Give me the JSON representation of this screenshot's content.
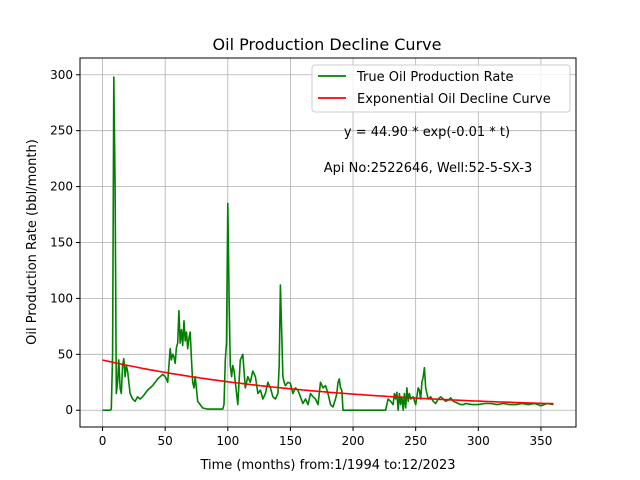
{
  "chart_data": {
    "type": "line",
    "title": "Oil Production Decline Curve",
    "xlabel": "Time (months) from:1/1994 to:12/2023",
    "ylabel": "Oil Production Rate (bbl/month)",
    "xlim": [
      -18,
      378
    ],
    "ylim": [
      -15,
      315
    ],
    "xticks": [
      0,
      50,
      100,
      150,
      200,
      250,
      300,
      350
    ],
    "yticks": [
      0,
      50,
      100,
      150,
      200,
      250,
      300
    ],
    "grid": true,
    "legend_position": "top-right",
    "series": [
      {
        "name": "True Oil Production Rate",
        "color": "#008000",
        "x": [
          0,
          3,
          6,
          7,
          8,
          9,
          10,
          11,
          12,
          13,
          14,
          15,
          16,
          17,
          18,
          19,
          20,
          22,
          24,
          26,
          28,
          30,
          32,
          34,
          36,
          38,
          40,
          42,
          44,
          46,
          48,
          50,
          51,
          52,
          53,
          54,
          55,
          56,
          57,
          58,
          59,
          60,
          61,
          62,
          63,
          64,
          65,
          66,
          67,
          68,
          69,
          70,
          71,
          72,
          73,
          74,
          76,
          78,
          80,
          84,
          88,
          92,
          96,
          97,
          98,
          99,
          100,
          101,
          102,
          103,
          104,
          105,
          106,
          107,
          108,
          110,
          112,
          114,
          116,
          118,
          120,
          122,
          124,
          126,
          128,
          130,
          132,
          134,
          136,
          138,
          140,
          141,
          142,
          143,
          144,
          145,
          146,
          148,
          150,
          152,
          154,
          156,
          158,
          160,
          162,
          164,
          166,
          168,
          170,
          172,
          174,
          176,
          178,
          180,
          182,
          184,
          186,
          187,
          188,
          189,
          190,
          191,
          192,
          194,
          198,
          204,
          210,
          216,
          220,
          222,
          224,
          226,
          228,
          230,
          232,
          233,
          234,
          235,
          236,
          237,
          238,
          239,
          240,
          241,
          242,
          243,
          244,
          245,
          246,
          248,
          250,
          252,
          253,
          254,
          255,
          256,
          257,
          258,
          259,
          260,
          262,
          264,
          266,
          268,
          270,
          272,
          274,
          276,
          278,
          280,
          282,
          284,
          286,
          288,
          290,
          295,
          300,
          305,
          310,
          315,
          320,
          325,
          330,
          335,
          340,
          345,
          350,
          355,
          360
        ],
        "values": [
          0,
          0,
          0,
          1,
          50,
          298,
          200,
          15,
          25,
          45,
          20,
          15,
          40,
          46,
          30,
          40,
          35,
          15,
          10,
          8,
          12,
          10,
          12,
          15,
          18,
          20,
          22,
          25,
          28,
          30,
          32,
          30,
          28,
          25,
          40,
          55,
          45,
          50,
          48,
          42,
          56,
          60,
          89,
          60,
          72,
          58,
          80,
          62,
          70,
          55,
          65,
          70,
          45,
          25,
          20,
          30,
          8,
          5,
          2,
          1,
          1,
          1,
          1,
          5,
          45,
          60,
          185,
          100,
          40,
          30,
          40,
          35,
          25,
          15,
          5,
          45,
          50,
          20,
          30,
          25,
          35,
          30,
          15,
          18,
          10,
          15,
          25,
          20,
          12,
          10,
          15,
          40,
          112,
          70,
          30,
          25,
          22,
          25,
          24,
          15,
          20,
          18,
          12,
          6,
          10,
          5,
          15,
          12,
          10,
          5,
          25,
          20,
          22,
          15,
          5,
          3,
          10,
          15,
          25,
          28,
          20,
          18,
          0,
          0,
          0,
          0,
          0,
          0,
          0,
          0,
          0,
          0,
          10,
          8,
          5,
          15,
          10,
          16,
          0,
          15,
          5,
          12,
          0,
          15,
          2,
          20,
          8,
          15,
          10,
          12,
          5,
          20,
          18,
          10,
          25,
          30,
          38,
          20,
          15,
          10,
          12,
          8,
          6,
          10,
          12,
          10,
          8,
          9,
          11,
          8,
          7,
          6,
          5,
          5,
          6,
          5,
          5,
          6,
          6,
          5,
          6,
          5,
          5,
          6,
          5,
          6,
          4,
          6,
          5
        ]
      },
      {
        "name": "Exponential Oil Decline Curve",
        "color": "#ff0000",
        "equation_label": "y = 44.90 * exp(-0.01 * t)",
        "a": 44.9,
        "b": -0.005675,
        "x_range": [
          0,
          360
        ]
      }
    ],
    "annotations": [
      "y = 44.90 * exp(-0.01 * t)",
      "Api No:2522646, Well:52-5-SX-3"
    ]
  }
}
